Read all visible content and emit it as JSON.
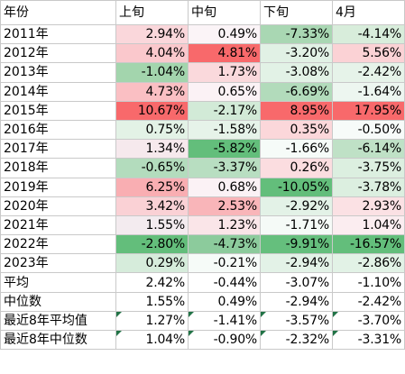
{
  "headers": [
    "年份",
    "上旬",
    "中旬",
    "下旬",
    "4月"
  ],
  "rows": [
    {
      "label": "2011年",
      "cells": [
        {
          "text": "2.94%",
          "bg": "#fad7db"
        },
        {
          "text": "0.49%",
          "bg": "#fbf4f7"
        },
        {
          "text": "-7.33%",
          "bg": "#a9d7b3"
        },
        {
          "text": "-4.14%",
          "bg": "#d8eddb"
        }
      ]
    },
    {
      "label": "2012年",
      "cells": [
        {
          "text": "4.04%",
          "bg": "#fac8cc"
        },
        {
          "text": "4.81%",
          "bg": "#f8696b"
        },
        {
          "text": "-3.20%",
          "bg": "#e1f1e5"
        },
        {
          "text": "5.56%",
          "bg": "#fbd2d5"
        }
      ]
    },
    {
      "label": "2013年",
      "cells": [
        {
          "text": "-1.04%",
          "bg": "#a3d5ad"
        },
        {
          "text": "1.73%",
          "bg": "#fad9dc"
        },
        {
          "text": "-3.08%",
          "bg": "#e2f2e6"
        },
        {
          "text": "-2.42%",
          "bg": "#e6f3e9"
        }
      ]
    },
    {
      "label": "2014年",
      "cells": [
        {
          "text": "4.73%",
          "bg": "#fabfc3"
        },
        {
          "text": "0.65%",
          "bg": "#fbf2f5"
        },
        {
          "text": "-6.69%",
          "bg": "#b2dbbb"
        },
        {
          "text": "-1.64%",
          "bg": "#edf6f0"
        }
      ]
    },
    {
      "label": "2015年",
      "cells": [
        {
          "text": "10.67%",
          "bg": "#f8696b"
        },
        {
          "text": "-2.17%",
          "bg": "#d2ead7"
        },
        {
          "text": "8.95%",
          "bg": "#f8696b"
        },
        {
          "text": "17.95%",
          "bg": "#f8696b"
        }
      ]
    },
    {
      "label": "2016年",
      "cells": [
        {
          "text": "0.75%",
          "bg": "#e3f2e6"
        },
        {
          "text": "-1.58%",
          "bg": "#e6f3e9"
        },
        {
          "text": "0.35%",
          "bg": "#fbd7da"
        },
        {
          "text": "-0.50%",
          "bg": "#f7fbf9"
        }
      ]
    },
    {
      "label": "2017年",
      "cells": [
        {
          "text": "1.34%",
          "bg": "#f6e9ed"
        },
        {
          "text": "-5.82%",
          "bg": "#63be7b"
        },
        {
          "text": "-1.66%",
          "bg": "#f6fbf8"
        },
        {
          "text": "-6.14%",
          "bg": "#bfe1c6"
        }
      ]
    },
    {
      "label": "2018年",
      "cells": [
        {
          "text": "-0.65%",
          "bg": "#b3dcbd"
        },
        {
          "text": "-3.37%",
          "bg": "#b8deC1"
        },
        {
          "text": "0.26%",
          "bg": "#fbdde0"
        },
        {
          "text": "-3.75%",
          "bg": "#dcefe0"
        }
      ]
    },
    {
      "label": "2019年",
      "cells": [
        {
          "text": "6.25%",
          "bg": "#f9aeb2"
        },
        {
          "text": "0.68%",
          "bg": "#fbf2f5"
        },
        {
          "text": "-10.05%",
          "bg": "#63be7b"
        },
        {
          "text": "-3.78%",
          "bg": "#dcefe0"
        }
      ]
    },
    {
      "label": "2020年",
      "cells": [
        {
          "text": "3.42%",
          "bg": "#fad1d5"
        },
        {
          "text": "2.53%",
          "bg": "#f9b5b9"
        },
        {
          "text": "-2.92%",
          "bg": "#e3f2e7"
        },
        {
          "text": "2.93%",
          "bg": "#fbe1e4"
        }
      ]
    },
    {
      "label": "2021年",
      "cells": [
        {
          "text": "1.55%",
          "bg": "#f3ebef"
        },
        {
          "text": "1.23%",
          "bg": "#fae5e8"
        },
        {
          "text": "-1.71%",
          "bg": "#f5faf7"
        },
        {
          "text": "1.04%",
          "bg": "#fbedf0"
        }
      ]
    },
    {
      "label": "2022年",
      "cells": [
        {
          "text": "-2.80%",
          "bg": "#63be7b"
        },
        {
          "text": "-4.73%",
          "bg": "#8ccb9c"
        },
        {
          "text": "-9.91%",
          "bg": "#65bf7d"
        },
        {
          "text": "-16.57%",
          "bg": "#63be7b"
        }
      ]
    },
    {
      "label": "2023年",
      "cells": [
        {
          "text": "0.29%",
          "bg": "#d6ecdb"
        },
        {
          "text": "-0.21%",
          "bg": "#f6fbf8"
        },
        {
          "text": "-2.94%",
          "bg": "#e3f2e7"
        },
        {
          "text": "-2.86%",
          "bg": "#e2f2e6"
        }
      ]
    },
    {
      "label": "平均",
      "cells": [
        {
          "text": "2.42%"
        },
        {
          "text": "-0.44%"
        },
        {
          "text": "-3.07%"
        },
        {
          "text": "-1.10%"
        }
      ]
    },
    {
      "label": "中位数",
      "cells": [
        {
          "text": "1.55%"
        },
        {
          "text": "0.49%"
        },
        {
          "text": "-2.94%"
        },
        {
          "text": "-2.42%"
        }
      ]
    },
    {
      "label": "最近8年平均值",
      "cells": [
        {
          "text": "1.27%",
          "error_marker": true
        },
        {
          "text": "-1.41%",
          "error_marker": true
        },
        {
          "text": "-3.57%",
          "error_marker": true
        },
        {
          "text": "-3.70%",
          "error_marker": true
        }
      ]
    },
    {
      "label": "最近8年中位数",
      "cells": [
        {
          "text": "1.04%",
          "error_marker": true
        },
        {
          "text": "-0.90%",
          "error_marker": true
        },
        {
          "text": "-2.32%",
          "error_marker": true
        },
        {
          "text": "-3.31%",
          "error_marker": true
        }
      ]
    }
  ]
}
